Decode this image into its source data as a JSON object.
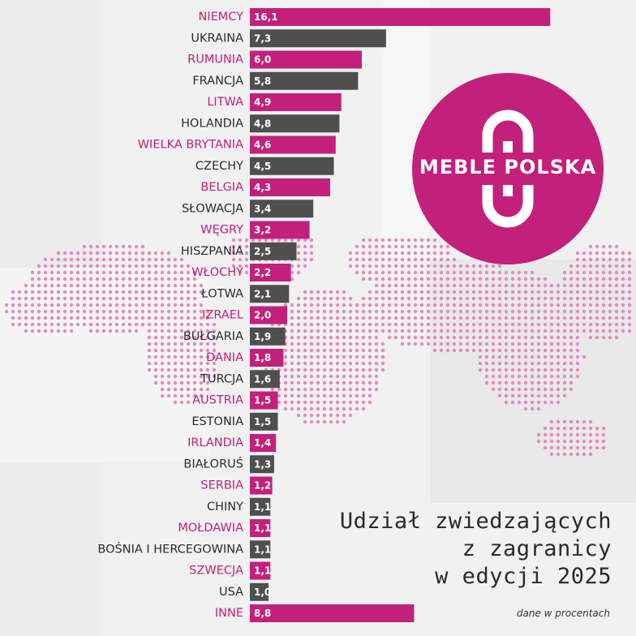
{
  "colors": {
    "accent": "#c2207b",
    "dark": "#4f4f4f",
    "dots": "#e48bbd"
  },
  "logo": {
    "text": "MEBLE POLSKA"
  },
  "title_lines": [
    "Udział zwiedzających",
    "z zagranicy",
    "w edycji 2025"
  ],
  "note": "dane w procentach",
  "chart_data": {
    "type": "bar",
    "orientation": "horizontal",
    "categories": [
      "NIEMCY",
      "UKRAINA",
      "RUMUNIA",
      "FRANCJA",
      "LITWA",
      "HOLANDIA",
      "WIELKA BRYTANIA",
      "CZECHY",
      "BELGIA",
      "SŁOWACJA",
      "WĘGRY",
      "HISZPANIA",
      "WŁOCHY",
      "ŁOTWA",
      "IZRAEL",
      "BUŁGARIA",
      "DANIA",
      "TURCJA",
      "AUSTRIA",
      "ESTONIA",
      "IRLANDIA",
      "BIAŁORUŚ",
      "SERBIA",
      "CHINY",
      "MOŁDAWIA",
      "BOŚNIA I HERCEGOWINA",
      "SZWECJA",
      "USA",
      "INNE"
    ],
    "values": [
      16.1,
      7.3,
      6.0,
      5.8,
      4.9,
      4.8,
      4.6,
      4.5,
      4.3,
      3.4,
      3.2,
      2.5,
      2.2,
      2.1,
      2.0,
      1.9,
      1.8,
      1.6,
      1.5,
      1.5,
      1.4,
      1.3,
      1.2,
      1.1,
      1.1,
      1.1,
      1.1,
      1.0,
      8.8
    ],
    "value_labels": [
      "16,1",
      "7,3",
      "6,0",
      "5,8",
      "4,9",
      "4,8",
      "4,6",
      "4,5",
      "4,3",
      "3,4",
      "3,2",
      "2,5",
      "2,2",
      "2,1",
      "2,0",
      "1,9",
      "1,8",
      "1,6",
      "1,5",
      "1,5",
      "1,4",
      "1,3",
      "1,2",
      "1,1",
      "1,1",
      "1,1",
      "1,1",
      "1,0",
      "8,8"
    ],
    "bar_colors": [
      "#c2207b",
      "#4f4f4f"
    ],
    "color_pattern": "alternating",
    "grid": false,
    "legend": "none"
  }
}
